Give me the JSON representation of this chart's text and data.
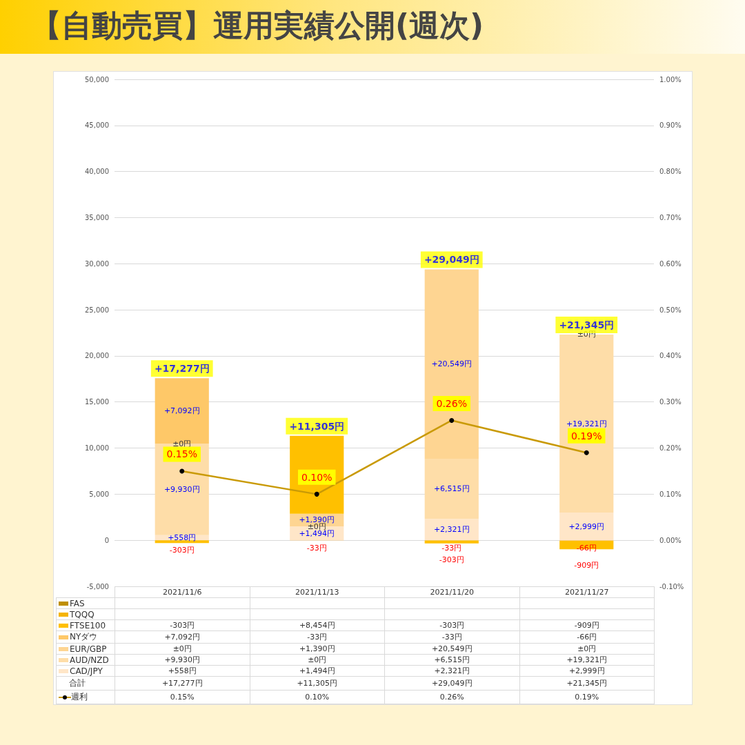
{
  "chart_data": {
    "type": "bar",
    "title": "【自動売買】運用実績公開(週次)",
    "stacked": true,
    "categories": [
      "2021/11/6",
      "2021/11/13",
      "2021/11/20",
      "2021/11/27"
    ],
    "series": [
      {
        "name": "CAD/JPY",
        "color": "#ffe6c8",
        "values": [
          558,
          1494,
          2321,
          2999
        ],
        "value_labels": [
          "+558円",
          "+1,494円",
          "+2,321円",
          "+2,999円"
        ]
      },
      {
        "name": "AUD/NZD",
        "color": "#fedda8",
        "values": [
          9930,
          0,
          6515,
          19321
        ],
        "value_labels": [
          "+9,930円",
          "±0円",
          "+6,515円",
          "+19,321円"
        ]
      },
      {
        "name": "EUR/GBP",
        "color": "#fed592",
        "values": [
          0,
          1390,
          20549,
          0
        ],
        "value_labels": [
          "±0円",
          "+1,390円",
          "+20,549円",
          "±0円"
        ]
      },
      {
        "name": "NYダウ",
        "color": "#fec868",
        "values": [
          7092,
          -33,
          -33,
          -66
        ],
        "value_labels": [
          "+7,092円",
          "-33円",
          "-33円",
          "-66円"
        ]
      },
      {
        "name": "FTSE100",
        "color": "#ffc000",
        "values": [
          -303,
          8454,
          -303,
          -909
        ],
        "value_labels": [
          "-303円",
          "+8,454円",
          "-303円",
          "-909円"
        ]
      },
      {
        "name": "TQQQ",
        "color": "#f5b400",
        "values": [
          null,
          null,
          null,
          null
        ]
      },
      {
        "name": "FAS",
        "color": "#bf8f00",
        "values": [
          null,
          null,
          null,
          null
        ]
      },
      {
        "name": "週利",
        "type": "line",
        "axis": "y2",
        "color": "#c99a06",
        "marker": "circle",
        "values": [
          0.15,
          0.1,
          0.26,
          0.19
        ],
        "value_labels": [
          "0.15%",
          "0.10%",
          "0.26%",
          "0.19%"
        ]
      }
    ],
    "totals": [
      "+17,277円",
      "+11,305円",
      "+29,049円",
      "+21,345円"
    ],
    "annotations": [
      "合計"
    ],
    "ylim": [
      -5000,
      50000
    ],
    "yticks": [
      {
        "value": -5000,
        "label": "-5,000"
      },
      {
        "value": 0,
        "label": "0"
      },
      {
        "value": 5000,
        "label": "5,000"
      },
      {
        "value": 10000,
        "label": "10,000"
      },
      {
        "value": 15000,
        "label": "15,000"
      },
      {
        "value": 20000,
        "label": "20,000"
      },
      {
        "value": 25000,
        "label": "25,000"
      },
      {
        "value": 30000,
        "label": "30,000"
      },
      {
        "value": 35000,
        "label": "35,000"
      },
      {
        "value": 40000,
        "label": "40,000"
      },
      {
        "value": 45000,
        "label": "45,000"
      },
      {
        "value": 50000,
        "label": "50,000"
      }
    ],
    "y2lim": [
      -0.1,
      1.0
    ],
    "y2ticks": [
      {
        "value": -0.1,
        "label": "-0.10%"
      },
      {
        "value": 0,
        "label": "0.00%"
      },
      {
        "value": 0.1,
        "label": "0.10%"
      },
      {
        "value": 0.2,
        "label": "0.20%"
      },
      {
        "value": 0.3,
        "label": "0.30%"
      },
      {
        "value": 0.4,
        "label": "0.40%"
      },
      {
        "value": 0.5,
        "label": "0.50%"
      },
      {
        "value": 0.6,
        "label": "0.60%"
      },
      {
        "value": 0.7,
        "label": "0.70%"
      },
      {
        "value": 0.8,
        "label": "0.80%"
      },
      {
        "value": 0.9,
        "label": "0.90%"
      },
      {
        "value": 1.0,
        "label": "1.00%"
      }
    ],
    "grid": "y",
    "legend": "bottom"
  }
}
